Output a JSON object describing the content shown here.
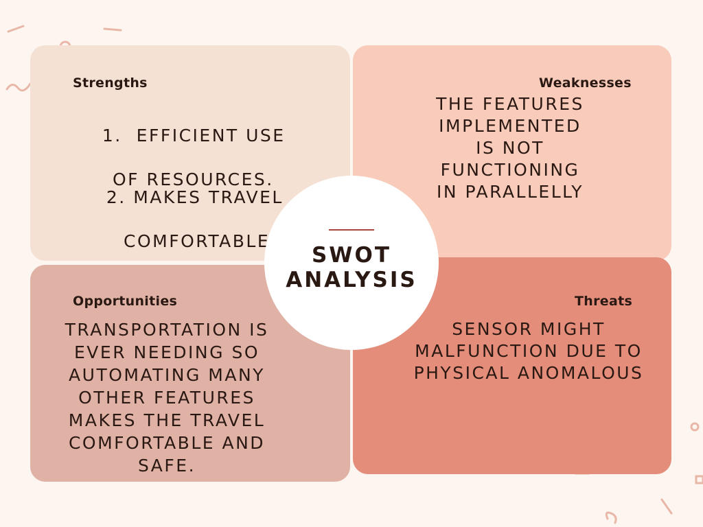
{
  "center": {
    "title": "SWOT\nANALYSIS"
  },
  "strengths": {
    "label": "Strengths",
    "items": [
      {
        "line1": "1.  EFFICIENT USE",
        "line2": "OF RESOURCES."
      },
      {
        "line1": "2. MAKES TRAVEL",
        "line2": "COMFORTABLE."
      }
    ]
  },
  "weaknesses": {
    "label": "Weaknesses",
    "text": "THE FEATURES\nIMPLEMENTED\nIS NOT\nFUNCTIONING\nIN PARALLELLY"
  },
  "opportunities": {
    "label": "Opportunities",
    "text": "TRANSPORTATION IS\nEVER NEEDING SO\nAUTOMATING MANY\nOTHER FEATURES\nMAKES THE TRAVEL\nCOMFORTABLE AND\nSAFE."
  },
  "threats": {
    "label": "Threats",
    "text": "SENSOR MIGHT\nMALFUNCTION DUE TO\nPHYSICAL ANOMALOUS"
  },
  "colors": {
    "background": "#fcf5f0",
    "strengths": "#f5e0d4",
    "weaknesses": "#f8cbba",
    "opportunities": "#e0b2a6",
    "threats": "#e38d7a",
    "text": "#2a1812",
    "accent": "#a4463a"
  }
}
